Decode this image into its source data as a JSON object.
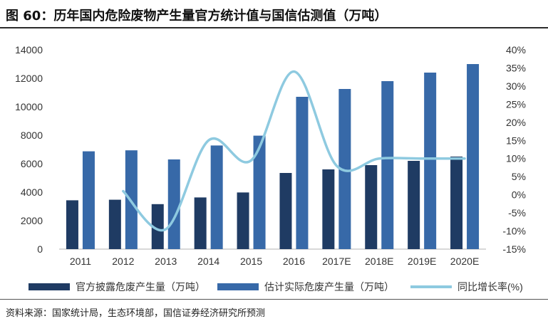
{
  "header": {
    "title": "图 60：历年国内危险废物产生量官方统计值与国信估测值（万吨）"
  },
  "footer": {
    "source": "资料来源：国家统计局，生态环境部，国信证券经济研究所预测"
  },
  "colors": {
    "official": "#1f3b63",
    "estimate": "#3769a8",
    "growth": "#8ecae0",
    "axis": "#b0b0b0"
  },
  "chart_data": {
    "type": "bar",
    "categories": [
      "2011",
      "2012",
      "2013",
      "2014",
      "2015",
      "2016",
      "2017E",
      "2018E",
      "2019E",
      "2020E"
    ],
    "series": [
      {
        "name": "官方披露危废产生量（万吨）",
        "kind": "bar",
        "axis": "left",
        "values": [
          3430,
          3470,
          3160,
          3630,
          3980,
          5350,
          5600,
          5900,
          6200,
          6500
        ]
      },
      {
        "name": "估计实际危废产生量（万吨）",
        "kind": "bar",
        "axis": "left",
        "values": [
          6870,
          6940,
          6300,
          7280,
          7970,
          10700,
          11250,
          11800,
          12400,
          13000
        ]
      },
      {
        "name": "同比增长率(%)",
        "kind": "line",
        "axis": "right",
        "smooth": true,
        "values": [
          null,
          1,
          -9.5,
          15,
          9.5,
          34,
          8,
          10,
          10,
          10
        ]
      }
    ],
    "y_left": {
      "min": 0,
      "max": 14000,
      "ticks": [
        "0",
        "2000",
        "4000",
        "6000",
        "8000",
        "10000",
        "12000",
        "14000"
      ]
    },
    "y_right": {
      "min": -15,
      "max": 40,
      "ticks": [
        "-15%",
        "-10%",
        "-5%",
        "0%",
        "5%",
        "10%",
        "15%",
        "20%",
        "25%",
        "30%",
        "35%",
        "40%"
      ]
    },
    "grid": false,
    "legend_position": "bottom"
  }
}
